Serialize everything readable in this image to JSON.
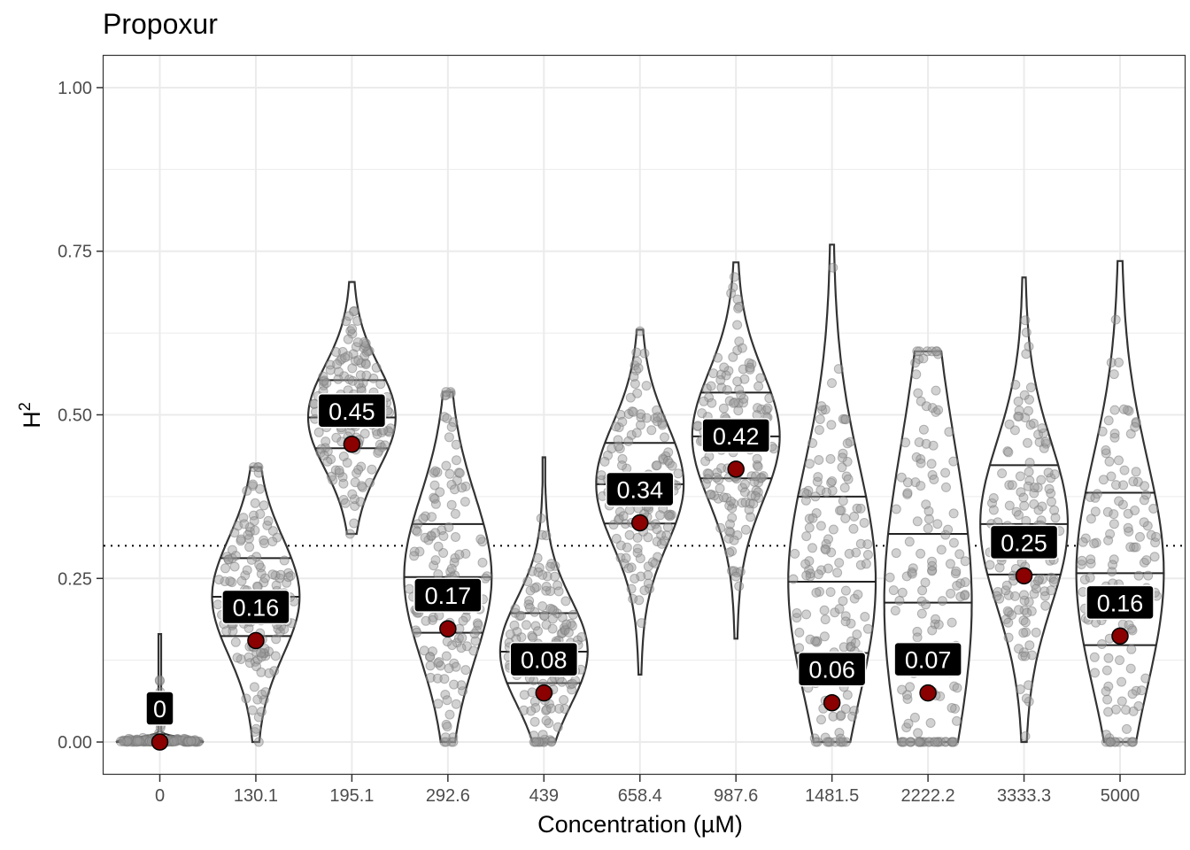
{
  "chart_data": {
    "type": "violin",
    "title": "Propoxur",
    "xlabel": "Concentration (µM)",
    "ylabel": "H",
    "ylabel_superscript": "2",
    "categories": [
      "0",
      "130.1",
      "195.1",
      "292.6",
      "439",
      "658.4",
      "987.6",
      "1481.5",
      "2222.2",
      "3333.3",
      "5000"
    ],
    "ylim": [
      -0.05,
      1.05
    ],
    "yticks": [
      0.0,
      0.25,
      0.5,
      0.75,
      1.0
    ],
    "ytick_labels": [
      "0.00",
      "0.25",
      "0.50",
      "0.75",
      "1.00"
    ],
    "reference_line": 0.3,
    "grid": true,
    "point_estimate_labels": [
      "0",
      "0.16",
      "0.45",
      "0.17",
      "0.08",
      "0.34",
      "0.42",
      "0.06",
      "0.07",
      "0.25",
      "0.16"
    ],
    "point_estimates": [
      0.0,
      0.155,
      0.455,
      0.173,
      0.075,
      0.335,
      0.417,
      0.06,
      0.075,
      0.254,
      0.162
    ],
    "violins": [
      {
        "min": 0.0,
        "max": 0.165,
        "q25": 0.0,
        "q50": 0.0,
        "q75": 0.002
      },
      {
        "min": 0.0,
        "max": 0.42,
        "q25": 0.162,
        "q50": 0.222,
        "q75": 0.281
      },
      {
        "min": 0.318,
        "max": 0.703,
        "q25": 0.449,
        "q50": 0.496,
        "q75": 0.553
      },
      {
        "min": 0.0,
        "max": 0.535,
        "q25": 0.167,
        "q50": 0.252,
        "q75": 0.333
      },
      {
        "min": 0.0,
        "max": 0.435,
        "q25": 0.09,
        "q50": 0.138,
        "q75": 0.197
      },
      {
        "min": 0.103,
        "max": 0.63,
        "q25": 0.334,
        "q50": 0.394,
        "q75": 0.457
      },
      {
        "min": 0.158,
        "max": 0.733,
        "q25": 0.403,
        "q50": 0.467,
        "q75": 0.534
      },
      {
        "min": 0.0,
        "max": 0.76,
        "q25": 0.136,
        "q50": 0.245,
        "q75": 0.375
      },
      {
        "min": 0.0,
        "max": 0.597,
        "q25": 0.0,
        "q50": 0.213,
        "q75": 0.318
      },
      {
        "min": 0.0,
        "max": 0.71,
        "q25": 0.256,
        "q50": 0.333,
        "q75": 0.423
      },
      {
        "min": 0.0,
        "max": 0.735,
        "q25": 0.148,
        "q50": 0.258,
        "q75": 0.381
      }
    ],
    "colors": {
      "point": "#8b0000",
      "jitter": "#999999",
      "label_bg": "#000000",
      "label_text": "#ffffff",
      "grid": "#ebebeb",
      "violin_stroke": "#333333"
    }
  }
}
